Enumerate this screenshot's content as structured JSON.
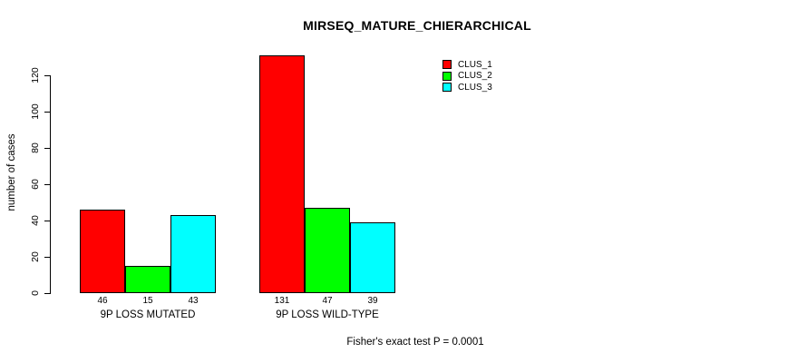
{
  "title": "MIRSEQ_MATURE_CHIERARCHICAL",
  "footer": "Fisher's exact test P = 0.0001",
  "colors": {
    "background": "#ffffff",
    "bar_border": "#000000",
    "text": "#000000",
    "clus_1": "#ff0000",
    "clus_2": "#00ff00",
    "clus_3": "#00ffff"
  },
  "chart_data": {
    "type": "bar",
    "title": "MIRSEQ_MATURE_CHIERARCHICAL",
    "xlabel": "",
    "ylabel": "number of cases",
    "categories": [
      "9P LOSS MUTATED",
      "9P LOSS WILD-TYPE"
    ],
    "series": [
      {
        "name": "CLUS_1",
        "color": "#ff0000",
        "values": [
          46,
          131
        ]
      },
      {
        "name": "CLUS_2",
        "color": "#00ff00",
        "values": [
          15,
          47
        ]
      },
      {
        "name": "CLUS_3",
        "color": "#00ffff",
        "values": [
          43,
          39
        ]
      }
    ],
    "bar_value_labels": [
      [
        "46",
        "15",
        "43"
      ],
      [
        "131",
        "47",
        "39"
      ]
    ],
    "yticks": [
      0,
      20,
      40,
      60,
      80,
      100,
      120
    ],
    "ylim": [
      0,
      132
    ],
    "grid": false,
    "legend_position": "top-right",
    "legend_entries": [
      "CLUS_1",
      "CLUS_2",
      "CLUS_3"
    ],
    "annotation": "Fisher's exact test P = 0.0001"
  }
}
